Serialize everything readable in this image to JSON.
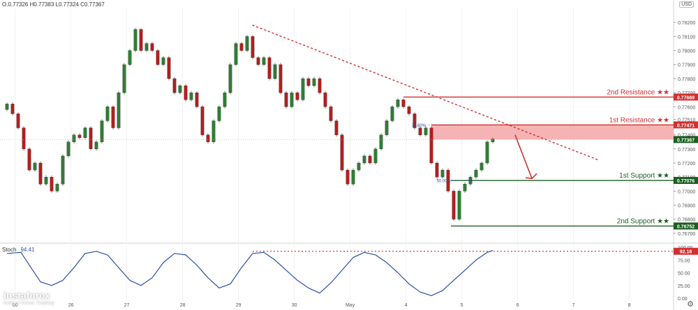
{
  "header": {
    "ohlc": "O.0.77326 H0.77383 L0.77324 C0.77367",
    "currency": "USD"
  },
  "stoch": {
    "label": "Stoch",
    "value": "94.41",
    "level": "92.18"
  },
  "logo": {
    "name": "instaforex",
    "tagline": "Instant Forex Trading"
  },
  "icons": {
    "settings": "gear-icon",
    "logo": "instaforex-logo-icon"
  },
  "colors": {
    "up": "#2e7d32",
    "down": "#b71c1c",
    "resistance": "#d32f2f",
    "support": "#1b5e20",
    "zone": "#f4a6a6",
    "stoch": "#2a4ea8",
    "current": "#1b5e20"
  },
  "chart_data": {
    "type": "candlestick",
    "price_range": [
      0.7665,
      0.783
    ],
    "price_ticks": [
      "0.78200",
      "0.78100",
      "0.78000",
      "0.77900",
      "0.77800",
      "0.77700",
      "0.77600",
      "0.77510",
      "0.77400",
      "0.77300",
      "0.77200",
      "0.77100",
      "0.77000",
      "0.76900",
      "0.76800",
      "0.76700"
    ],
    "time_ticks": [
      {
        "label": "00",
        "x": 0.145
      },
      {
        "label": "26",
        "x": 1.145
      },
      {
        "label": "27",
        "x": 2.145
      },
      {
        "label": "28",
        "x": 3.145
      },
      {
        "label": "29",
        "x": 4.145
      },
      {
        "label": "30",
        "x": 5.145
      },
      {
        "label": "May",
        "x": 6.145
      },
      {
        "label": "4",
        "x": 7.145
      },
      {
        "label": "5",
        "x": 8.145
      },
      {
        "label": "6",
        "x": 9.145
      },
      {
        "label": "7",
        "x": 10.145
      },
      {
        "label": "8",
        "x": 11.145
      }
    ],
    "levels": [
      {
        "label": "2nd Resistance ★★",
        "price": 0.77669,
        "price_label": "0.77669",
        "kind": "resistance",
        "x_start": 7.1
      },
      {
        "label": "1st Resistance ★★",
        "price": 0.77471,
        "price_label": "0.77471",
        "kind": "resistance",
        "x_start": 7.6
      },
      {
        "label": "1st Support ★★",
        "price": 0.77076,
        "price_label": "0.77076",
        "kind": "support",
        "x_start": 7.95
      },
      {
        "label": "2nd Support ★★",
        "price": 0.76752,
        "price_label": "0.76752",
        "kind": "support",
        "x_start": 7.95
      }
    ],
    "current_price": {
      "price": 0.77367,
      "label": "0.77367"
    },
    "zone": {
      "from": 0.77367,
      "to": 0.77471,
      "x_start": 7.6
    },
    "fib_levels": [
      {
        "label": "78.60%",
        "price": 0.77471,
        "x": 7.55
      },
      {
        "label": "50.00%",
        "price": 0.77076,
        "x": 8.0
      }
    ],
    "trendline": [
      {
        "x": 4.4,
        "price": 0.7818
      },
      {
        "x": 10.6,
        "price": 0.7722
      }
    ],
    "arrow": [
      {
        "x": 9.1,
        "price": 0.774
      },
      {
        "x": 9.4,
        "price": 0.7709
      }
    ],
    "candles": [
      [
        0.0,
        0.7758,
        0.7762
      ],
      [
        0.1,
        0.7762,
        0.7755
      ],
      [
        0.2,
        0.7755,
        0.7745
      ],
      [
        0.3,
        0.7745,
        0.773
      ],
      [
        0.4,
        0.773,
        0.7715
      ],
      [
        0.5,
        0.7715,
        0.772
      ],
      [
        0.6,
        0.772,
        0.7705
      ],
      [
        0.7,
        0.7705,
        0.771
      ],
      [
        0.8,
        0.771,
        0.77
      ],
      [
        0.9,
        0.77,
        0.7705
      ],
      [
        1.0,
        0.7705,
        0.7725
      ],
      [
        1.1,
        0.7725,
        0.7735
      ],
      [
        1.2,
        0.7735,
        0.774
      ],
      [
        1.3,
        0.774,
        0.7738
      ],
      [
        1.4,
        0.7738,
        0.7745
      ],
      [
        1.5,
        0.7745,
        0.773
      ],
      [
        1.6,
        0.773,
        0.7735
      ],
      [
        1.7,
        0.7735,
        0.775
      ],
      [
        1.8,
        0.775,
        0.776
      ],
      [
        1.9,
        0.776,
        0.7745
      ],
      [
        2.0,
        0.7745,
        0.777
      ],
      [
        2.1,
        0.777,
        0.779
      ],
      [
        2.2,
        0.779,
        0.78
      ],
      [
        2.3,
        0.78,
        0.7815
      ],
      [
        2.4,
        0.7815,
        0.78
      ],
      [
        2.5,
        0.78,
        0.7805
      ],
      [
        2.6,
        0.7805,
        0.78
      ],
      [
        2.7,
        0.78,
        0.779
      ],
      [
        2.8,
        0.779,
        0.7795
      ],
      [
        2.9,
        0.7795,
        0.778
      ],
      [
        3.0,
        0.778,
        0.777
      ],
      [
        3.1,
        0.777,
        0.7775
      ],
      [
        3.2,
        0.7775,
        0.7765
      ],
      [
        3.3,
        0.7765,
        0.777
      ],
      [
        3.4,
        0.777,
        0.776
      ],
      [
        3.5,
        0.776,
        0.774
      ],
      [
        3.6,
        0.774,
        0.7735
      ],
      [
        3.7,
        0.7735,
        0.775
      ],
      [
        3.8,
        0.775,
        0.776
      ],
      [
        3.9,
        0.776,
        0.777
      ],
      [
        4.0,
        0.777,
        0.779
      ],
      [
        4.1,
        0.779,
        0.7805
      ],
      [
        4.2,
        0.7805,
        0.78
      ],
      [
        4.3,
        0.78,
        0.781
      ],
      [
        4.4,
        0.781,
        0.7795
      ],
      [
        4.5,
        0.7795,
        0.779
      ],
      [
        4.6,
        0.779,
        0.7795
      ],
      [
        4.7,
        0.7795,
        0.778
      ],
      [
        4.8,
        0.778,
        0.779
      ],
      [
        4.9,
        0.779,
        0.777
      ],
      [
        5.0,
        0.777,
        0.776
      ],
      [
        5.1,
        0.776,
        0.777
      ],
      [
        5.2,
        0.777,
        0.7765
      ],
      [
        5.3,
        0.7765,
        0.778
      ],
      [
        5.4,
        0.778,
        0.7775
      ],
      [
        5.5,
        0.7775,
        0.778
      ],
      [
        5.6,
        0.778,
        0.777
      ],
      [
        5.7,
        0.777,
        0.776
      ],
      [
        5.8,
        0.776,
        0.775
      ],
      [
        5.9,
        0.775,
        0.774
      ],
      [
        6.0,
        0.774,
        0.7715
      ],
      [
        6.1,
        0.7715,
        0.7705
      ],
      [
        6.2,
        0.7705,
        0.7715
      ],
      [
        6.3,
        0.7715,
        0.772
      ],
      [
        6.4,
        0.772,
        0.7725
      ],
      [
        6.5,
        0.7725,
        0.772
      ],
      [
        6.6,
        0.772,
        0.773
      ],
      [
        6.7,
        0.773,
        0.774
      ],
      [
        6.8,
        0.774,
        0.775
      ],
      [
        6.9,
        0.775,
        0.776
      ],
      [
        7.0,
        0.776,
        0.7765
      ],
      [
        7.1,
        0.7765,
        0.776
      ],
      [
        7.2,
        0.776,
        0.7755
      ],
      [
        7.3,
        0.7755,
        0.7745
      ],
      [
        7.4,
        0.7745,
        0.774
      ],
      [
        7.5,
        0.774,
        0.7745
      ],
      [
        7.6,
        0.7745,
        0.772
      ],
      [
        7.7,
        0.772,
        0.771
      ],
      [
        7.8,
        0.771,
        0.7715
      ],
      [
        7.9,
        0.7715,
        0.77
      ],
      [
        8.0,
        0.77,
        0.768
      ],
      [
        8.1,
        0.768,
        0.77
      ],
      [
        8.2,
        0.77,
        0.7705
      ],
      [
        8.3,
        0.7705,
        0.771
      ],
      [
        8.4,
        0.771,
        0.7715
      ],
      [
        8.5,
        0.7715,
        0.772
      ],
      [
        8.6,
        0.772,
        0.7735
      ],
      [
        8.7,
        0.7735,
        0.7737
      ]
    ],
    "stochastic": {
      "range": [
        0,
        100
      ],
      "ticks": [
        "100.00",
        "75.00",
        "50.00",
        "25.00",
        "0.00"
      ],
      "level": 92.18,
      "level_start_x": 4.4,
      "values": [
        [
          0.0,
          88
        ],
        [
          0.25,
          90
        ],
        [
          0.4,
          65
        ],
        [
          0.6,
          32
        ],
        [
          0.8,
          25
        ],
        [
          1.0,
          35
        ],
        [
          1.2,
          60
        ],
        [
          1.4,
          88
        ],
        [
          1.6,
          92
        ],
        [
          1.8,
          85
        ],
        [
          2.0,
          60
        ],
        [
          2.2,
          35
        ],
        [
          2.4,
          25
        ],
        [
          2.6,
          40
        ],
        [
          2.8,
          70
        ],
        [
          3.0,
          88
        ],
        [
          3.2,
          85
        ],
        [
          3.4,
          65
        ],
        [
          3.6,
          40
        ],
        [
          3.8,
          20
        ],
        [
          4.0,
          28
        ],
        [
          4.2,
          60
        ],
        [
          4.4,
          88
        ],
        [
          4.6,
          90
        ],
        [
          4.8,
          75
        ],
        [
          5.0,
          55
        ],
        [
          5.2,
          35
        ],
        [
          5.4,
          20
        ],
        [
          5.6,
          10
        ],
        [
          5.8,
          30
        ],
        [
          6.0,
          55
        ],
        [
          6.2,
          80
        ],
        [
          6.4,
          90
        ],
        [
          6.6,
          85
        ],
        [
          6.8,
          70
        ],
        [
          7.0,
          50
        ],
        [
          7.2,
          28
        ],
        [
          7.4,
          12
        ],
        [
          7.6,
          5
        ],
        [
          7.8,
          15
        ],
        [
          8.0,
          35
        ],
        [
          8.2,
          55
        ],
        [
          8.4,
          75
        ],
        [
          8.6,
          90
        ],
        [
          8.7,
          94
        ]
      ]
    }
  }
}
